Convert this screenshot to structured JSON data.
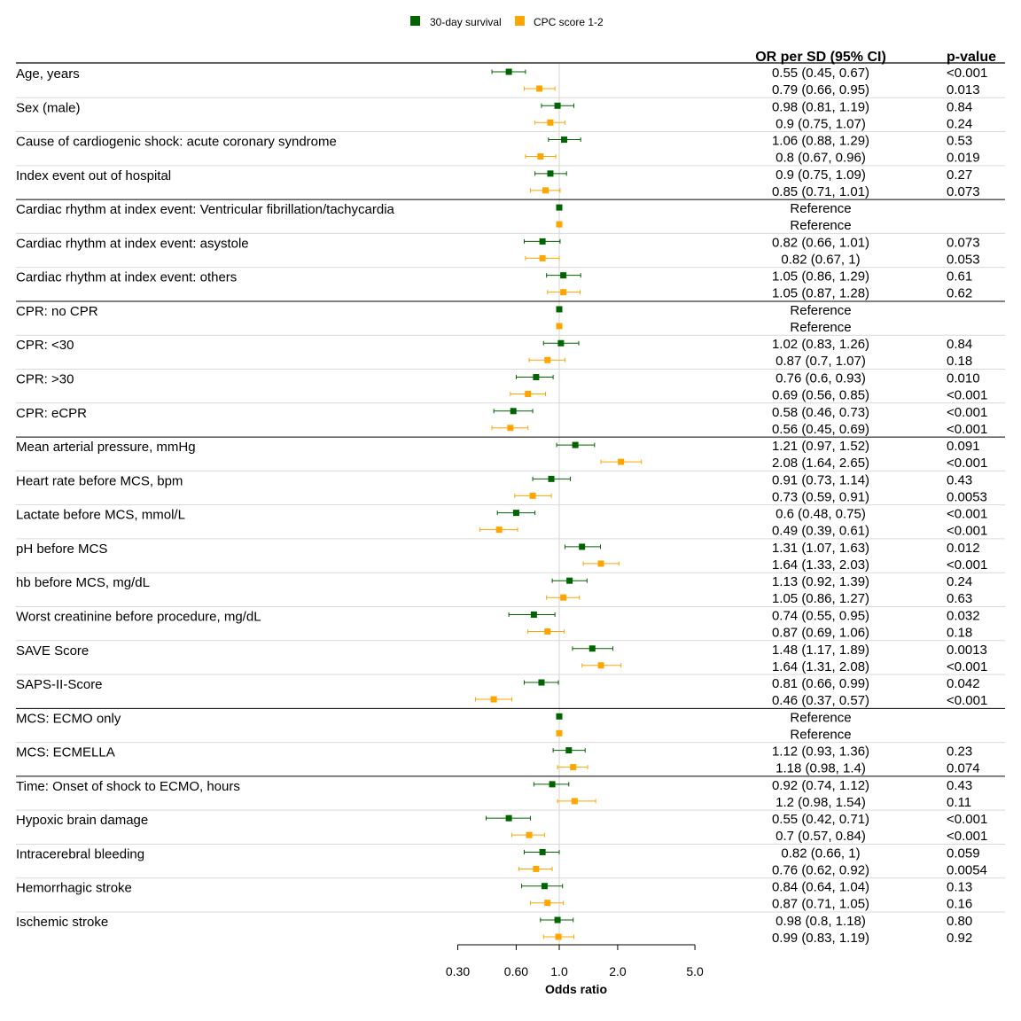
{
  "chart_data": {
    "type": "forest",
    "x_scale": "log",
    "xlabel": "Odds ratio",
    "xlim": [
      0.3,
      5.0
    ],
    "xticks": [
      "0.30",
      "0.60",
      "1.0",
      "2.0",
      "5.0"
    ],
    "reference_line": 1.0,
    "legend": {
      "placement": "top-center"
    },
    "series": [
      {
        "name": "30-day survival",
        "color": "#006400"
      },
      {
        "name": "CPC score 1-2",
        "color": "#FFA500"
      }
    ],
    "column_headers": {
      "estimate": "OR per SD (95% CI)",
      "pvalue": "p-value"
    },
    "rows": [
      {
        "label": "Age, years",
        "group_end": false,
        "estimates": [
          {
            "or": 0.55,
            "lo": 0.45,
            "hi": 0.67,
            "text": "0.55 (0.45, 0.67)",
            "p": "<0.001"
          },
          {
            "or": 0.79,
            "lo": 0.66,
            "hi": 0.95,
            "text": "0.79 (0.66, 0.95)",
            "p": "0.013"
          }
        ]
      },
      {
        "label": "Sex (male)",
        "group_end": false,
        "estimates": [
          {
            "or": 0.98,
            "lo": 0.81,
            "hi": 1.19,
            "text": "0.98 (0.81, 1.19)",
            "p": "0.84"
          },
          {
            "or": 0.9,
            "lo": 0.75,
            "hi": 1.07,
            "text": "0.9 (0.75, 1.07)",
            "p": "0.24"
          }
        ]
      },
      {
        "label": "Cause of cardiogenic shock: acute coronary syndrome",
        "group_end": false,
        "estimates": [
          {
            "or": 1.06,
            "lo": 0.88,
            "hi": 1.29,
            "text": "1.06 (0.88, 1.29)",
            "p": "0.53"
          },
          {
            "or": 0.8,
            "lo": 0.67,
            "hi": 0.96,
            "text": "0.8 (0.67, 0.96)",
            "p": "0.019"
          }
        ]
      },
      {
        "label": "Index event out of hospital",
        "group_end": true,
        "estimates": [
          {
            "or": 0.9,
            "lo": 0.75,
            "hi": 1.09,
            "text": "0.9 (0.75, 1.09)",
            "p": "0.27"
          },
          {
            "or": 0.85,
            "lo": 0.71,
            "hi": 1.01,
            "text": "0.85 (0.71, 1.01)",
            "p": "0.073"
          }
        ]
      },
      {
        "label": "Cardiac rhythm at index event: Ventricular fibrillation/tachycardia",
        "group_end": false,
        "estimates": [
          {
            "or": 1.0,
            "lo": null,
            "hi": null,
            "text": "Reference",
            "p": ""
          },
          {
            "or": 1.0,
            "lo": null,
            "hi": null,
            "text": "Reference",
            "p": ""
          }
        ]
      },
      {
        "label": "Cardiac rhythm at index event: asystole",
        "group_end": false,
        "estimates": [
          {
            "or": 0.82,
            "lo": 0.66,
            "hi": 1.01,
            "text": "0.82 (0.66, 1.01)",
            "p": "0.073"
          },
          {
            "or": 0.82,
            "lo": 0.67,
            "hi": 1.0,
            "text": "0.82 (0.67, 1)",
            "p": "0.053"
          }
        ]
      },
      {
        "label": "Cardiac rhythm at index event: others",
        "group_end": true,
        "estimates": [
          {
            "or": 1.05,
            "lo": 0.86,
            "hi": 1.29,
            "text": "1.05 (0.86, 1.29)",
            "p": "0.61"
          },
          {
            "or": 1.05,
            "lo": 0.87,
            "hi": 1.28,
            "text": "1.05 (0.87, 1.28)",
            "p": "0.62"
          }
        ]
      },
      {
        "label": "CPR: no CPR",
        "group_end": false,
        "estimates": [
          {
            "or": 1.0,
            "lo": null,
            "hi": null,
            "text": "Reference",
            "p": ""
          },
          {
            "or": 1.0,
            "lo": null,
            "hi": null,
            "text": "Reference",
            "p": ""
          }
        ]
      },
      {
        "label": "CPR: <30",
        "group_end": false,
        "estimates": [
          {
            "or": 1.02,
            "lo": 0.83,
            "hi": 1.26,
            "text": "1.02 (0.83, 1.26)",
            "p": "0.84"
          },
          {
            "or": 0.87,
            "lo": 0.7,
            "hi": 1.07,
            "text": "0.87 (0.7, 1.07)",
            "p": "0.18"
          }
        ]
      },
      {
        "label": "CPR: >30",
        "group_end": false,
        "estimates": [
          {
            "or": 0.76,
            "lo": 0.6,
            "hi": 0.93,
            "text": "0.76 (0.6, 0.93)",
            "p": "0.010"
          },
          {
            "or": 0.69,
            "lo": 0.56,
            "hi": 0.85,
            "text": "0.69 (0.56, 0.85)",
            "p": "<0.001"
          }
        ]
      },
      {
        "label": "CPR: eCPR",
        "group_end": true,
        "estimates": [
          {
            "or": 0.58,
            "lo": 0.46,
            "hi": 0.73,
            "text": "0.58 (0.46, 0.73)",
            "p": "<0.001"
          },
          {
            "or": 0.56,
            "lo": 0.45,
            "hi": 0.69,
            "text": "0.56 (0.45, 0.69)",
            "p": "<0.001"
          }
        ]
      },
      {
        "label": "Mean arterial pressure, mmHg",
        "group_end": false,
        "estimates": [
          {
            "or": 1.21,
            "lo": 0.97,
            "hi": 1.52,
            "text": "1.21 (0.97, 1.52)",
            "p": "0.091"
          },
          {
            "or": 2.08,
            "lo": 1.64,
            "hi": 2.65,
            "text": "2.08 (1.64, 2.65)",
            "p": "<0.001"
          }
        ]
      },
      {
        "label": "Heart rate before MCS, bpm",
        "group_end": false,
        "estimates": [
          {
            "or": 0.91,
            "lo": 0.73,
            "hi": 1.14,
            "text": "0.91 (0.73, 1.14)",
            "p": "0.43"
          },
          {
            "or": 0.73,
            "lo": 0.59,
            "hi": 0.91,
            "text": "0.73 (0.59, 0.91)",
            "p": "0.0053"
          }
        ]
      },
      {
        "label": "Lactate before MCS, mmol/L",
        "group_end": false,
        "estimates": [
          {
            "or": 0.6,
            "lo": 0.48,
            "hi": 0.75,
            "text": "0.6 (0.48, 0.75)",
            "p": "<0.001"
          },
          {
            "or": 0.49,
            "lo": 0.39,
            "hi": 0.61,
            "text": "0.49 (0.39, 0.61)",
            "p": "<0.001"
          }
        ]
      },
      {
        "label": "pH before MCS",
        "group_end": false,
        "estimates": [
          {
            "or": 1.31,
            "lo": 1.07,
            "hi": 1.63,
            "text": "1.31 (1.07, 1.63)",
            "p": "0.012"
          },
          {
            "or": 1.64,
            "lo": 1.33,
            "hi": 2.03,
            "text": "1.64 (1.33, 2.03)",
            "p": "<0.001"
          }
        ]
      },
      {
        "label": "hb before MCS, mg/dL",
        "group_end": false,
        "estimates": [
          {
            "or": 1.13,
            "lo": 0.92,
            "hi": 1.39,
            "text": "1.13 (0.92, 1.39)",
            "p": "0.24"
          },
          {
            "or": 1.05,
            "lo": 0.86,
            "hi": 1.27,
            "text": "1.05 (0.86, 1.27)",
            "p": "0.63"
          }
        ]
      },
      {
        "label": "Worst creatinine before procedure, mg/dL",
        "group_end": false,
        "estimates": [
          {
            "or": 0.74,
            "lo": 0.55,
            "hi": 0.95,
            "text": "0.74 (0.55, 0.95)",
            "p": "0.032"
          },
          {
            "or": 0.87,
            "lo": 0.69,
            "hi": 1.06,
            "text": "0.87 (0.69, 1.06)",
            "p": "0.18"
          }
        ]
      },
      {
        "label": "SAVE Score",
        "group_end": false,
        "estimates": [
          {
            "or": 1.48,
            "lo": 1.17,
            "hi": 1.89,
            "text": "1.48 (1.17, 1.89)",
            "p": "0.0013"
          },
          {
            "or": 1.64,
            "lo": 1.31,
            "hi": 2.08,
            "text": "1.64 (1.31, 2.08)",
            "p": "<0.001"
          }
        ]
      },
      {
        "label": "SAPS-II-Score",
        "group_end": true,
        "estimates": [
          {
            "or": 0.81,
            "lo": 0.66,
            "hi": 0.99,
            "text": "0.81 (0.66, 0.99)",
            "p": "0.042"
          },
          {
            "or": 0.46,
            "lo": 0.37,
            "hi": 0.57,
            "text": "0.46 (0.37, 0.57)",
            "p": "<0.001"
          }
        ]
      },
      {
        "label": "MCS: ECMO only",
        "group_end": false,
        "estimates": [
          {
            "or": 1.0,
            "lo": null,
            "hi": null,
            "text": "Reference",
            "p": ""
          },
          {
            "or": 1.0,
            "lo": null,
            "hi": null,
            "text": "Reference",
            "p": ""
          }
        ]
      },
      {
        "label": "MCS: ECMELLA",
        "group_end": true,
        "estimates": [
          {
            "or": 1.12,
            "lo": 0.93,
            "hi": 1.36,
            "text": "1.12 (0.93, 1.36)",
            "p": "0.23"
          },
          {
            "or": 1.18,
            "lo": 0.98,
            "hi": 1.4,
            "text": "1.18 (0.98, 1.4)",
            "p": "0.074"
          }
        ]
      },
      {
        "label": "Time: Onset of shock to ECMO, hours",
        "group_end": false,
        "estimates": [
          {
            "or": 0.92,
            "lo": 0.74,
            "hi": 1.12,
            "text": "0.92 (0.74, 1.12)",
            "p": "0.43"
          },
          {
            "or": 1.2,
            "lo": 0.98,
            "hi": 1.54,
            "text": "1.2 (0.98, 1.54)",
            "p": "0.11"
          }
        ]
      },
      {
        "label": "Hypoxic brain damage",
        "group_end": false,
        "estimates": [
          {
            "or": 0.55,
            "lo": 0.42,
            "hi": 0.71,
            "text": "0.55 (0.42, 0.71)",
            "p": "<0.001"
          },
          {
            "or": 0.7,
            "lo": 0.57,
            "hi": 0.84,
            "text": "0.7 (0.57, 0.84)",
            "p": "<0.001"
          }
        ]
      },
      {
        "label": "Intracerebral bleeding",
        "group_end": false,
        "estimates": [
          {
            "or": 0.82,
            "lo": 0.66,
            "hi": 1.0,
            "text": "0.82 (0.66, 1)",
            "p": "0.059"
          },
          {
            "or": 0.76,
            "lo": 0.62,
            "hi": 0.92,
            "text": "0.76 (0.62, 0.92)",
            "p": "0.0054"
          }
        ]
      },
      {
        "label": "Hemorrhagic stroke",
        "group_end": false,
        "estimates": [
          {
            "or": 0.84,
            "lo": 0.64,
            "hi": 1.04,
            "text": "0.84 (0.64, 1.04)",
            "p": "0.13"
          },
          {
            "or": 0.87,
            "lo": 0.71,
            "hi": 1.05,
            "text": "0.87 (0.71, 1.05)",
            "p": "0.16"
          }
        ]
      },
      {
        "label": "Ischemic stroke",
        "group_end": false,
        "estimates": [
          {
            "or": 0.98,
            "lo": 0.8,
            "hi": 1.18,
            "text": "0.98 (0.8, 1.18)",
            "p": "0.80"
          },
          {
            "or": 0.99,
            "lo": 0.83,
            "hi": 1.19,
            "text": "0.99 (0.83, 1.19)",
            "p": "0.92"
          }
        ]
      }
    ]
  }
}
